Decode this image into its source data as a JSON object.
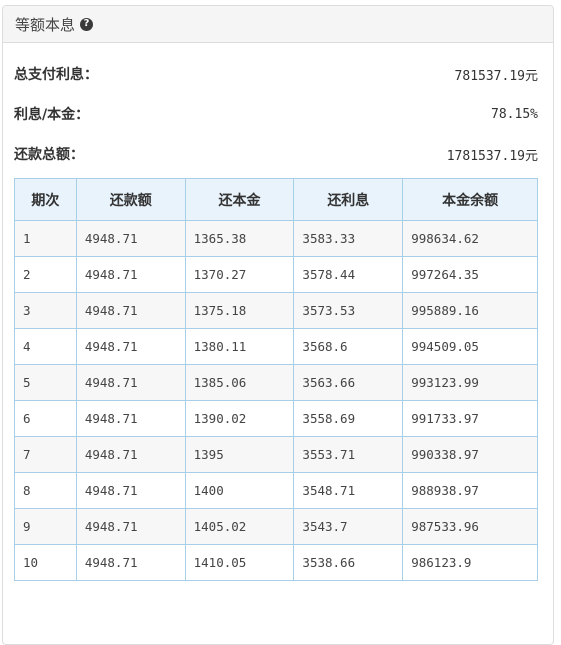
{
  "panel": {
    "title": "等额本息",
    "help_icon": "question-circle-icon"
  },
  "summary": {
    "total_interest_label": "总支付利息：",
    "total_interest_value": "781537.19元",
    "ratio_label": "利息/本金：",
    "ratio_value": "78.15%",
    "total_repayment_label": "还款总额：",
    "total_repayment_value": "1781537.19元"
  },
  "table": {
    "headers": [
      "期次",
      "还款额",
      "还本金",
      "还利息",
      "本金余额"
    ],
    "rows": [
      [
        "1",
        "4948.71",
        "1365.38",
        "3583.33",
        "998634.62"
      ],
      [
        "2",
        "4948.71",
        "1370.27",
        "3578.44",
        "997264.35"
      ],
      [
        "3",
        "4948.71",
        "1375.18",
        "3573.53",
        "995889.16"
      ],
      [
        "4",
        "4948.71",
        "1380.11",
        "3568.6",
        "994509.05"
      ],
      [
        "5",
        "4948.71",
        "1385.06",
        "3563.66",
        "993123.99"
      ],
      [
        "6",
        "4948.71",
        "1390.02",
        "3558.69",
        "991733.97"
      ],
      [
        "7",
        "4948.71",
        "1395",
        "3553.71",
        "990338.97"
      ],
      [
        "8",
        "4948.71",
        "1400",
        "3548.71",
        "988938.97"
      ],
      [
        "9",
        "4948.71",
        "1405.02",
        "3543.7",
        "987533.96"
      ],
      [
        "10",
        "4948.71",
        "1410.05",
        "3538.66",
        "986123.9"
      ]
    ]
  }
}
